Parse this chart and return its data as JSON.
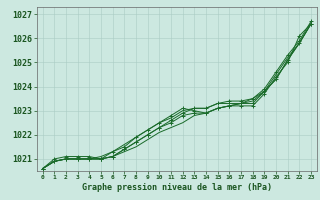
{
  "bg_color": "#cce8e0",
  "plot_bg_color": "#cce8e0",
  "grid_color": "#aaccc4",
  "line_color": "#1a6b2a",
  "marker_color": "#1a6b2a",
  "title": "Graphe pression niveau de la mer (hPa)",
  "title_color": "#1a5520",
  "xlim": [
    -0.5,
    23.5
  ],
  "ylim": [
    1020.5,
    1027.3
  ],
  "yticks": [
    1021,
    1022,
    1023,
    1024,
    1025,
    1026,
    1027
  ],
  "xticks": [
    0,
    1,
    2,
    3,
    4,
    5,
    6,
    7,
    8,
    9,
    10,
    11,
    12,
    13,
    14,
    15,
    16,
    17,
    18,
    19,
    20,
    21,
    22,
    23
  ],
  "series": [
    [
      1020.6,
      1021.0,
      1021.1,
      1021.1,
      1021.1,
      1021.0,
      1021.3,
      1021.5,
      1021.9,
      1022.2,
      1022.5,
      1022.8,
      1023.1,
      1023.0,
      1022.9,
      1023.1,
      1023.2,
      1023.2,
      1023.2,
      1023.7,
      1024.4,
      1025.0,
      1026.1,
      1026.6
    ],
    [
      1020.6,
      1020.9,
      1021.0,
      1021.0,
      1021.0,
      1021.0,
      1021.1,
      1021.3,
      1021.5,
      1021.8,
      1022.1,
      1022.3,
      1022.5,
      1022.8,
      1022.9,
      1023.1,
      1023.2,
      1023.3,
      1023.4,
      1023.8,
      1024.3,
      1025.1,
      1025.8,
      1026.6
    ],
    [
      1020.6,
      1020.9,
      1021.0,
      1021.0,
      1021.0,
      1021.0,
      1021.1,
      1021.4,
      1021.7,
      1022.0,
      1022.3,
      1022.5,
      1022.8,
      1022.9,
      1022.9,
      1023.1,
      1023.2,
      1023.3,
      1023.3,
      1023.8,
      1024.3,
      1025.1,
      1025.8,
      1026.6
    ],
    [
      1020.6,
      1020.9,
      1021.0,
      1021.0,
      1021.0,
      1021.1,
      1021.3,
      1021.6,
      1021.9,
      1022.2,
      1022.5,
      1022.7,
      1023.0,
      1023.1,
      1023.1,
      1023.3,
      1023.3,
      1023.3,
      1023.5,
      1023.8,
      1024.5,
      1025.2,
      1025.8,
      1026.6
    ],
    [
      1020.6,
      1020.9,
      1021.0,
      1021.0,
      1021.0,
      1021.0,
      1021.1,
      1021.4,
      1021.7,
      1022.0,
      1022.3,
      1022.6,
      1022.9,
      1023.1,
      1023.1,
      1023.3,
      1023.4,
      1023.4,
      1023.5,
      1023.9,
      1024.6,
      1025.3,
      1025.9,
      1026.7
    ]
  ],
  "marker_series": [
    0,
    2,
    4
  ],
  "no_marker_series": [
    1,
    3
  ],
  "ytick_fontsize": 6,
  "xtick_fontsize": 4.5,
  "title_fontsize": 6.0,
  "linewidth": 0.7
}
